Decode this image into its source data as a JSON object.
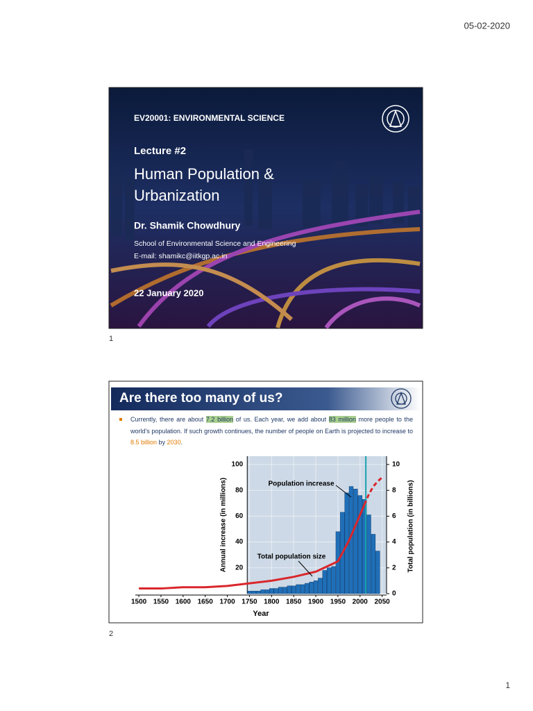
{
  "header": {
    "date": "05-02-2020"
  },
  "slide1": {
    "number": "1",
    "course": "EV20001: ENVIRONMENTAL SCIENCE",
    "lecture": "Lecture #2",
    "title_lines": [
      "Human Population &",
      "Urbanization"
    ],
    "author": "Dr. Shamik Chowdhury",
    "school": "School of Environmental Science and Engineering",
    "email": "E-mail: shamikc@iitkgp.ac.in",
    "date": "22 January 2020"
  },
  "slide2": {
    "number": "2",
    "title": "Are there too many of us?",
    "bullet": [
      "Currently, there are about ",
      "7.2 billion",
      " of us. Each year, we add about ",
      "83 million",
      " more people to the world's population. If such growth continues, the number of people on Earth is projected to increase to ",
      "8.5 billion",
      " by ",
      "2030",
      "."
    ]
  },
  "chart_data": {
    "type": "bar",
    "xlabel": "Year",
    "ylabel": "Annual increase (in millions)",
    "y2label": "Total population (in billions)",
    "xlim": [
      1492,
      2060
    ],
    "xticks": [
      1500,
      1550,
      1600,
      1650,
      1700,
      1750,
      1800,
      1850,
      1900,
      1950,
      2000,
      2050
    ],
    "ylim": [
      0,
      100
    ],
    "yticks": [
      20,
      40,
      60,
      80,
      100
    ],
    "y2lim": [
      0,
      10
    ],
    "y2ticks": [
      0,
      2,
      4,
      6,
      8,
      10
    ],
    "grid": true,
    "series": [
      {
        "name": "Population increase",
        "type": "bar",
        "color": "#1f6fb8",
        "x": [
          1750,
          1760,
          1770,
          1780,
          1790,
          1800,
          1810,
          1820,
          1830,
          1840,
          1850,
          1860,
          1870,
          1880,
          1890,
          1900,
          1910,
          1920,
          1930,
          1940,
          1950,
          1960,
          1970,
          1980,
          1990,
          2000,
          2010,
          2020,
          2030,
          2040
        ],
        "values": [
          2,
          2,
          2,
          3,
          3,
          4,
          4,
          5,
          5,
          6,
          6,
          7,
          7,
          8,
          9,
          10,
          12,
          18,
          20,
          21,
          48,
          63,
          78,
          83,
          81,
          76,
          73,
          61,
          46,
          33
        ]
      },
      {
        "name": "Total population size",
        "type": "line",
        "axis": "y2",
        "color": "#d9262b",
        "x": [
          1500,
          1550,
          1600,
          1650,
          1700,
          1750,
          1800,
          1850,
          1900,
          1950,
          1975,
          2000,
          2010
        ],
        "values": [
          0.4,
          0.4,
          0.5,
          0.5,
          0.6,
          0.8,
          1.0,
          1.3,
          1.7,
          2.5,
          4.1,
          6.1,
          6.9
        ]
      },
      {
        "type": "line",
        "axis": "y2",
        "color": "#d9262b",
        "dashed": true,
        "x": [
          2010,
          2020,
          2030,
          2040,
          2050
        ],
        "values": [
          6.9,
          7.7,
          8.3,
          8.7,
          9.0
        ]
      }
    ]
  },
  "footer": {
    "page": "1"
  }
}
